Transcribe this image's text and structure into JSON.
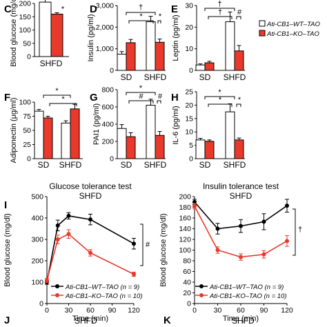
{
  "colors": {
    "wt": "#ffffff",
    "ko": "#e8392b",
    "wt_line": "#000000",
    "ko_line": "#e8392b"
  },
  "legend": {
    "wt": "Ati-CB1–WT–TAO",
    "ko": "Ati-CB1–KO–TAO",
    "wt_n": "Ati-CB1–WT–TAO (n = 9)",
    "ko_n": "Ati-CB1–KO–TAO (n = 10)"
  },
  "bottom": {
    "j_letter": "J",
    "j_label": "SHFD",
    "k_letter": "K",
    "k_label": "SHFD"
  },
  "chart_data": [
    {
      "id": "C",
      "type": "bar",
      "letter": "C",
      "ylabel": "Blood glucose (mg/dl)",
      "ylim": [
        0,
        200
      ],
      "yticks": [
        "0",
        "50",
        "100",
        "150",
        "200"
      ],
      "yticks_num": [
        0,
        50,
        100,
        150,
        200
      ],
      "categories": [
        "SHFD"
      ],
      "series": [
        {
          "values": [
            205
          ],
          "errors": [
            12
          ]
        },
        {
          "values": [
            160
          ],
          "errors": [
            5
          ]
        }
      ],
      "sig": [
        {
          "label": "*"
        }
      ]
    },
    {
      "id": "D",
      "type": "bar",
      "letter": "D",
      "ylabel": "Insulin (pg/ml)",
      "ylim": [
        0,
        3000
      ],
      "yticks": [
        "0",
        "1,000",
        "2,000",
        "3,000"
      ],
      "yticks_num": [
        0,
        1000,
        2000,
        3000
      ],
      "categories": [
        "SD",
        "SHFD"
      ],
      "series": [
        {
          "values": [
            750,
            2250
          ],
          "errors": [
            120,
            250
          ]
        },
        {
          "values": [
            1280,
            1300
          ],
          "errors": [
            150,
            150
          ]
        }
      ],
      "sig": [
        {
          "label": "†"
        },
        {
          "label": "*"
        },
        {
          "label": "*"
        }
      ]
    },
    {
      "id": "E",
      "type": "bar",
      "letter": "E",
      "ylabel": "Leptin (pg/ml)",
      "ylim": [
        0,
        30
      ],
      "yticks": [
        "0",
        "10",
        "20",
        "30"
      ],
      "yticks_num": [
        0,
        10,
        20,
        30
      ],
      "categories": [
        "SD",
        "SHFD"
      ],
      "series": [
        {
          "values": [
            2.5,
            22.5
          ],
          "errors": [
            0.5,
            4.5
          ]
        },
        {
          "values": [
            3.5,
            9
          ],
          "errors": [
            0.7,
            2.5
          ]
        }
      ],
      "sig": [
        {
          "label": "†"
        },
        {
          "label": "†"
        },
        {
          "label": "#"
        }
      ]
    },
    {
      "id": "F",
      "type": "bar",
      "letter": "F",
      "ylabel": "Adiponectin (μg/ml)",
      "ylim": [
        0,
        100
      ],
      "yticks": [
        "0",
        "25",
        "50",
        "75",
        "100"
      ],
      "yticks_num": [
        0,
        25,
        50,
        75,
        100
      ],
      "categories": [
        "SD",
        "SHFD"
      ],
      "series": [
        {
          "values": [
            84,
            63
          ],
          "errors": [
            3,
            4
          ]
        },
        {
          "values": [
            72,
            88
          ],
          "errors": [
            3,
            8
          ]
        }
      ],
      "sig": [
        {
          "label": "*"
        },
        {
          "label": "*"
        }
      ]
    },
    {
      "id": "G",
      "type": "bar",
      "letter": "G",
      "ylabel": "PAI1 (pg/ml)",
      "ylim": [
        0,
        800
      ],
      "yticks": [
        "0",
        "200",
        "400",
        "600",
        "800"
      ],
      "yticks_num": [
        0,
        200,
        400,
        600,
        800
      ],
      "categories": [
        "SD",
        "SHFD"
      ],
      "series": [
        {
          "values": [
            350,
            620
          ],
          "errors": [
            45,
            70
          ]
        },
        {
          "values": [
            255,
            270
          ],
          "errors": [
            45,
            45
          ]
        }
      ],
      "sig": [
        {
          "label": "*"
        },
        {
          "label": "#"
        },
        {
          "label": "#"
        }
      ]
    },
    {
      "id": "H",
      "type": "bar",
      "letter": "H",
      "ylabel": "IL-6 (pg/ml)",
      "ylim": [
        0,
        25
      ],
      "yticks": [
        "0",
        "5",
        "10",
        "15",
        "20",
        "25"
      ],
      "yticks_num": [
        0,
        5,
        10,
        15,
        20,
        25
      ],
      "categories": [
        "SD",
        "SHFD"
      ],
      "series": [
        {
          "values": [
            7,
            17.5
          ],
          "errors": [
            0.6,
            3
          ]
        },
        {
          "values": [
            6.5,
            7
          ],
          "errors": [
            0.5,
            0.7
          ]
        }
      ],
      "sig": [
        {
          "label": "*"
        },
        {
          "label": "*"
        },
        {
          "label": "*"
        }
      ]
    },
    {
      "id": "I1",
      "type": "line",
      "letter": "I",
      "title": "Glucose tolerance test",
      "subtitle": "SHFD",
      "xlabel": "Time (min)",
      "ylabel": "Blood glucose (mg/dl)",
      "xlim": [
        0,
        120
      ],
      "ylim": [
        0,
        500
      ],
      "xticks": [
        "0",
        "30",
        "60",
        "90",
        "120"
      ],
      "xticks_num": [
        0,
        30,
        60,
        90,
        120
      ],
      "yticks": [
        "0",
        "100",
        "200",
        "300",
        "400",
        "500"
      ],
      "yticks_num": [
        0,
        100,
        200,
        300,
        400,
        500
      ],
      "x": [
        0,
        15,
        30,
        60,
        120
      ],
      "series": [
        {
          "values": [
            100,
            365,
            410,
            393,
            280
          ],
          "errors": [
            10,
            25,
            15,
            25,
            25
          ]
        },
        {
          "values": [
            108,
            300,
            325,
            237,
            137
          ],
          "errors": [
            10,
            20,
            20,
            15,
            10
          ]
        }
      ],
      "sig": {
        "label": "#"
      }
    },
    {
      "id": "I2",
      "type": "line",
      "title": "Insulin tolerance test",
      "subtitle": "SHFD",
      "xlabel": "Time (min)",
      "ylabel": "Blood glucose (mg/dl)",
      "xlim": [
        0,
        120
      ],
      "ylim": [
        0,
        200
      ],
      "xticks": [
        "0",
        "30",
        "60",
        "90",
        "120"
      ],
      "xticks_num": [
        0,
        30,
        60,
        90,
        120
      ],
      "yticks": [
        "0",
        "20",
        "40",
        "60",
        "80",
        "100",
        "120",
        "140",
        "160",
        "180",
        "200"
      ],
      "yticks_num": [
        0,
        20,
        40,
        60,
        80,
        100,
        120,
        140,
        160,
        180,
        200
      ],
      "x": [
        0,
        30,
        60,
        90,
        120
      ],
      "series": [
        {
          "values": [
            190,
            140,
            145,
            153,
            183
          ],
          "errors": [
            5,
            10,
            12,
            15,
            12
          ]
        },
        {
          "values": [
            182,
            100,
            87,
            92,
            117
          ],
          "errors": [
            5,
            6,
            6,
            7,
            10
          ]
        }
      ],
      "sig": {
        "label": "†"
      }
    }
  ]
}
